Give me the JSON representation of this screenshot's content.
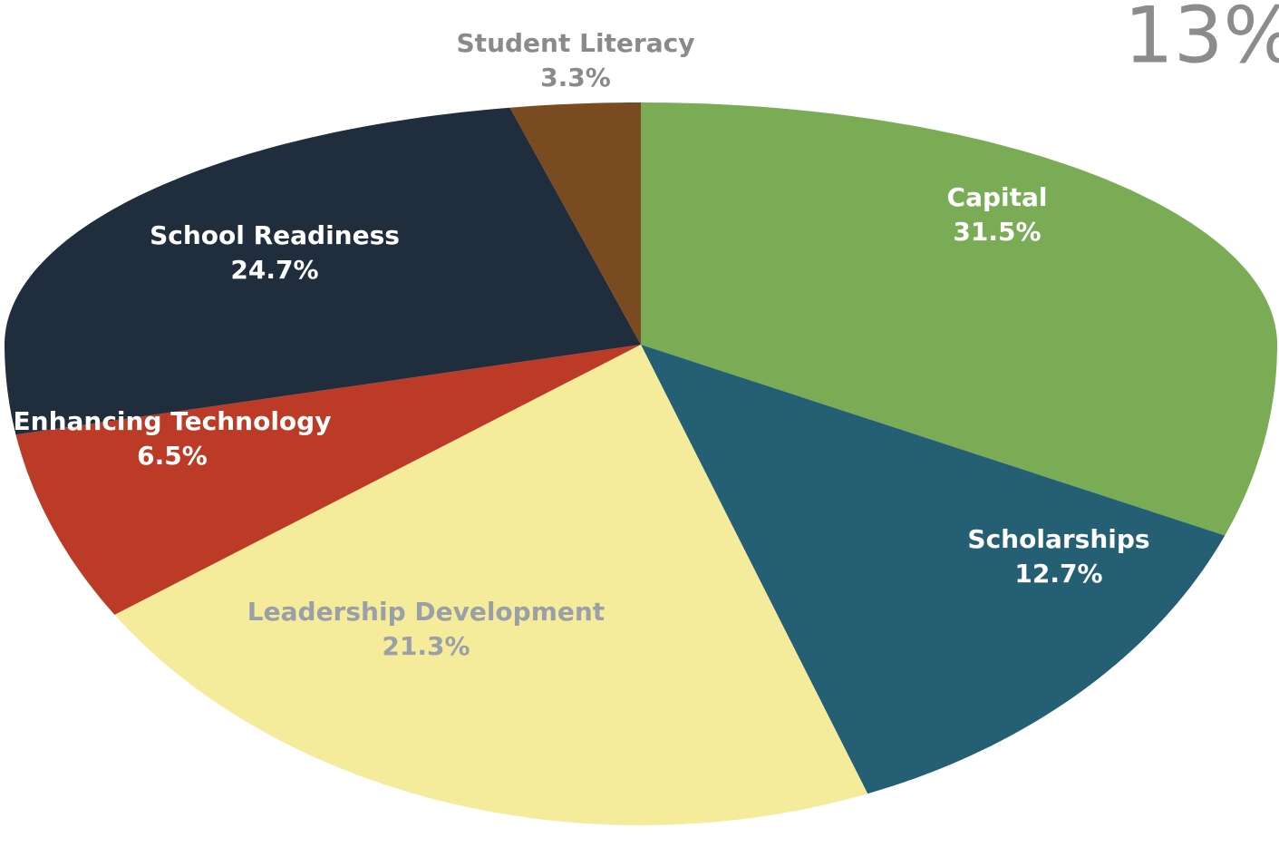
{
  "chart_data": {
    "type": "pie",
    "annotation": "13%",
    "categories": [
      "Capital",
      "Scholarships",
      "Leadership Development",
      "Enhancing Technology",
      "School Readiness",
      "Student Literacy"
    ],
    "values": [
      31.5,
      12.7,
      21.3,
      6.5,
      24.7,
      3.3
    ],
    "value_labels": [
      "31.5%",
      "12.7%",
      "21.3%",
      "6.5%",
      "24.7%",
      "3.3%"
    ],
    "colors": [
      "#7aab55",
      "#255f73",
      "#f4ec9a",
      "#bb3b26",
      "#1f2d3d",
      "#7a4a20"
    ]
  }
}
